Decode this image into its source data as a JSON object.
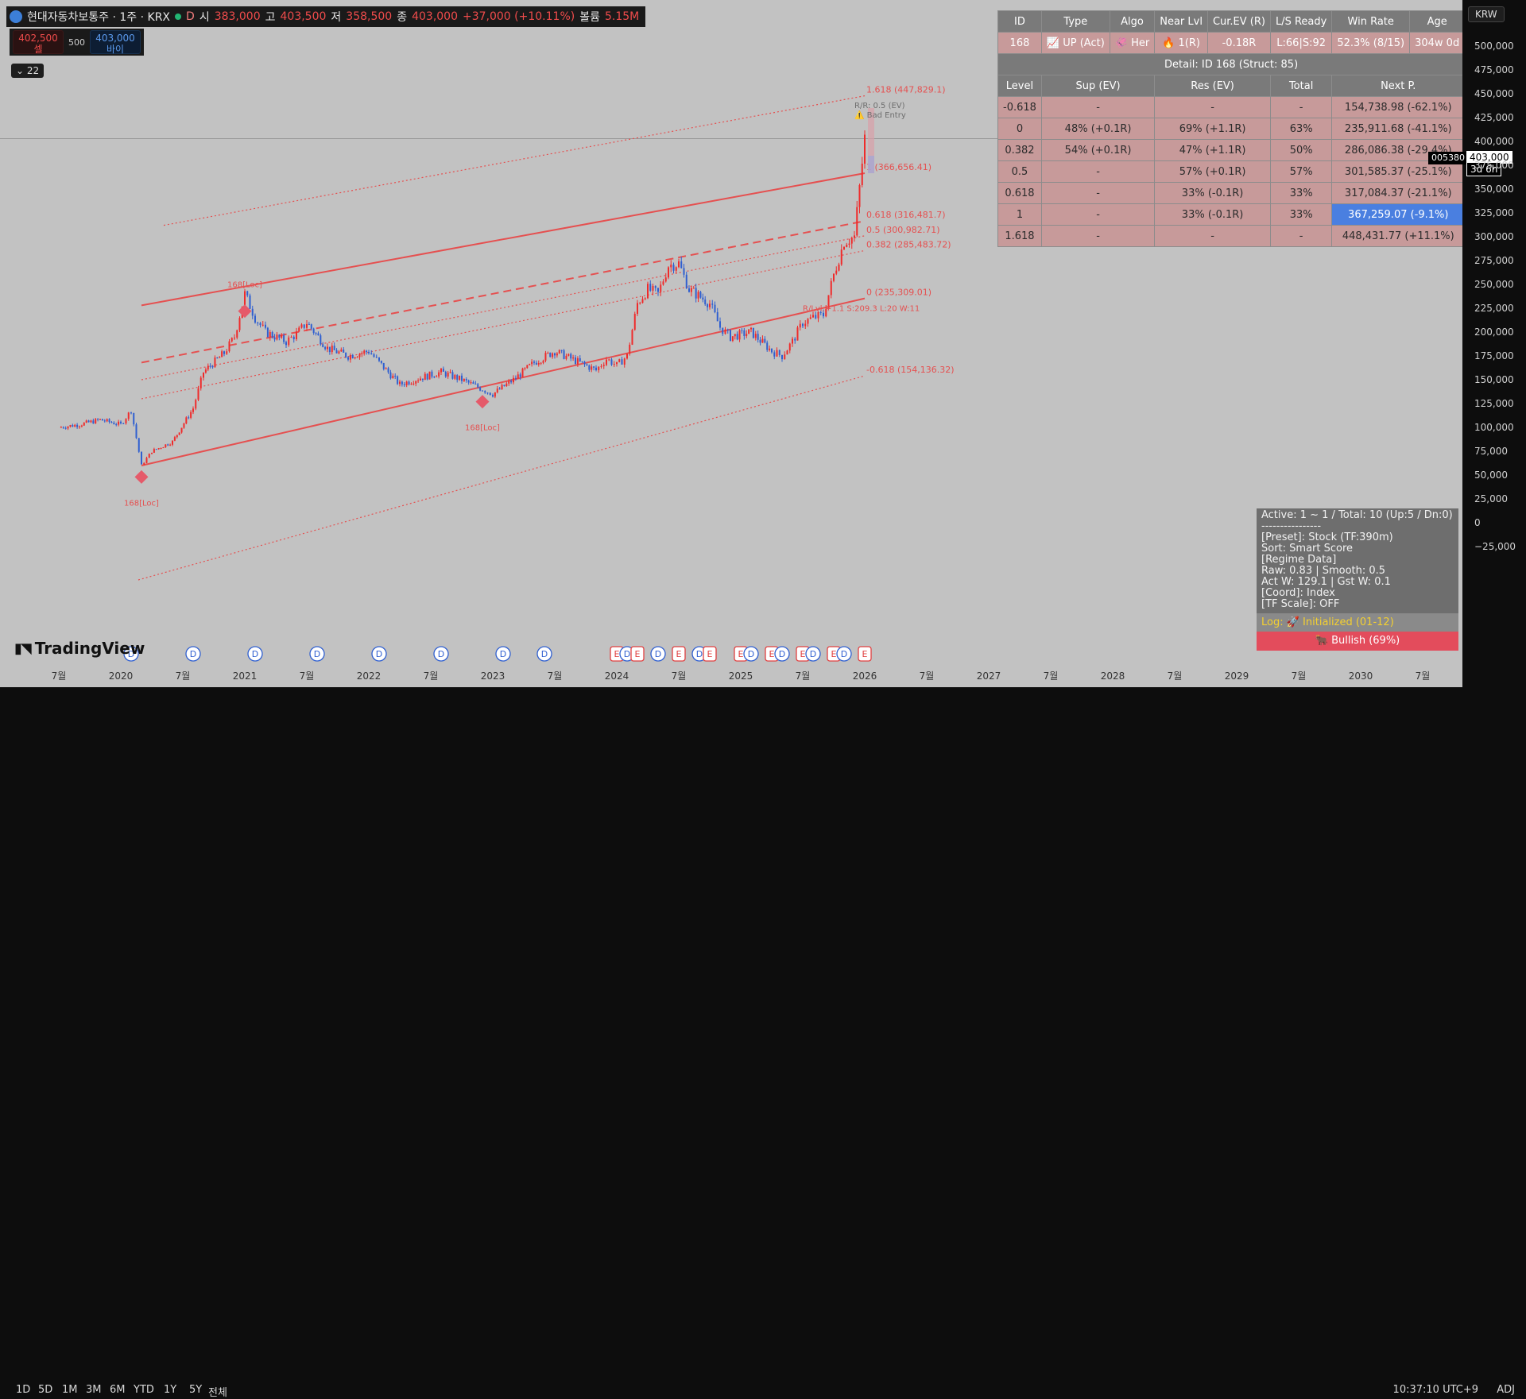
{
  "ticker": {
    "name": "현대자동차보통주 · 1주 · KRX",
    "interval": "D",
    "o_label": "시",
    "o": "383,000",
    "h_label": "고",
    "h": "403,500",
    "l_label": "저",
    "l": "358,500",
    "c_label": "종",
    "c": "403,000",
    "change": "+37,000 (+10.11%)",
    "vol_label": "볼륨",
    "vol": "5.15M"
  },
  "trade": {
    "sell_price": "402,500",
    "sell_label": "셀",
    "qty": "500",
    "buy_price": "403,000",
    "buy_label": "바이"
  },
  "indicator_count": "22",
  "branding": "TradingView",
  "table": {
    "headers": [
      "ID",
      "Type",
      "Algo",
      "Near Lvl",
      "Cur.EV (R)",
      "L/S Ready",
      "Win Rate",
      "Age"
    ],
    "selected": [
      "168",
      "📈 UP (Act)",
      "🦑 Her",
      "🔥 1(R)",
      "-0.18R",
      "L:66|S:92",
      "52.3% (8/15)",
      "304w 0d"
    ],
    "detail_title": "Detail: ID 168 (Struct: 85)",
    "level_headers": [
      "Level",
      "Sup (EV)",
      "Res (EV)",
      "Total",
      "Next P."
    ],
    "levels": [
      [
        "-0.618",
        "-",
        "-",
        "-",
        "154,738.98 (-62.1%)"
      ],
      [
        "0",
        "48% (+0.1R)",
        "69% (+1.1R)",
        "63%",
        "235,911.68 (-41.1%)"
      ],
      [
        "0.382",
        "54% (+0.1R)",
        "47% (+1.1R)",
        "50%",
        "286,086.38 (-29.4%)"
      ],
      [
        "0.5",
        "-",
        "57% (+0.1R)",
        "57%",
        "301,585.37 (-25.1%)"
      ],
      [
        "0.618",
        "-",
        "33% (-0.1R)",
        "33%",
        "317,084.37 (-21.1%)"
      ],
      [
        "1",
        "-",
        "33% (-0.1R)",
        "33%",
        "367,259.07 (-9.1%)"
      ],
      [
        "1.618",
        "-",
        "-",
        "-",
        "448,431.77 (+11.1%)"
      ]
    ]
  },
  "info": {
    "lines": [
      "Active: 1 ~ 1 / Total: 10 (Up:5 / Dn:0)",
      "----------------",
      "[Preset]: Stock (TF:390m)",
      "Sort: Smart Score",
      "[Regime Data]",
      "Raw: 0.83 | Smooth: 0.5",
      "Act W: 129.1 | Gst W: 0.1",
      "[Coord]: Index",
      "[TF Scale]: OFF"
    ],
    "log": "Log: 🚀 Initialized (01-12)",
    "bull": "🐂 Bullish (69%)"
  },
  "price_scale": {
    "currency": "KRW",
    "ticks": [
      "500,000",
      "475,000",
      "450,000",
      "425,000",
      "400,000",
      "375,000",
      "350,000",
      "325,000",
      "300,000",
      "275,000",
      "250,000",
      "225,000",
      "200,000",
      "175,000",
      "150,000",
      "125,000",
      "100,000",
      "75,000",
      "50,000",
      "25,000",
      "0",
      "−25,000"
    ],
    "current_price": "403,000",
    "countdown": "3d 6h",
    "symbol_code": "005380"
  },
  "bottom": {
    "timeframes": [
      "1D",
      "5D",
      "1M",
      "3M",
      "6M",
      "YTD",
      "1Y",
      "5Y",
      "전체"
    ],
    "clock": "10:37:10 UTC+9",
    "adj": "ADJ"
  },
  "chart_data": {
    "type": "candlestick",
    "x_tick_labels": [
      "7월",
      "2020",
      "7월",
      "2021",
      "7월",
      "2022",
      "7월",
      "2023",
      "7월",
      "2024",
      "7월",
      "2025",
      "7월",
      "2026",
      "7월",
      "2027",
      "7월",
      "2028",
      "7월",
      "2029",
      "7월",
      "2030",
      "7월"
    ],
    "ylim": [
      -25000,
      500000
    ],
    "price_path": [
      [
        "2019-07",
        100000
      ],
      [
        "2019-09",
        103000
      ],
      [
        "2019-11",
        108000
      ],
      [
        "2020-01",
        103000
      ],
      [
        "2020-02",
        118000
      ],
      [
        "2020-03",
        60000
      ],
      [
        "2020-04",
        75000
      ],
      [
        "2020-06",
        85000
      ],
      [
        "2020-08",
        120000
      ],
      [
        "2020-09",
        158000
      ],
      [
        "2020-11",
        178000
      ],
      [
        "2020-12",
        195000
      ],
      [
        "2021-01",
        240000
      ],
      [
        "2021-02",
        215000
      ],
      [
        "2021-03",
        200000
      ],
      [
        "2021-05",
        190000
      ],
      [
        "2021-06",
        198000
      ],
      [
        "2021-07",
        210000
      ],
      [
        "2021-09",
        183000
      ],
      [
        "2021-11",
        175000
      ],
      [
        "2022-01",
        180000
      ],
      [
        "2022-02",
        168000
      ],
      [
        "2022-04",
        145000
      ],
      [
        "2022-06",
        152000
      ],
      [
        "2022-08",
        158000
      ],
      [
        "2022-10",
        150000
      ],
      [
        "2022-12",
        140000
      ],
      [
        "2023-01",
        135000
      ],
      [
        "2023-03",
        150000
      ],
      [
        "2023-05",
        168000
      ],
      [
        "2023-07",
        180000
      ],
      [
        "2023-09",
        170000
      ],
      [
        "2023-11",
        160000
      ],
      [
        "2023-12",
        172000
      ],
      [
        "2024-01",
        165000
      ],
      [
        "2024-02",
        175000
      ],
      [
        "2024-03",
        230000
      ],
      [
        "2024-04",
        245000
      ],
      [
        "2024-05",
        240000
      ],
      [
        "2024-06",
        270000
      ],
      [
        "2024-07",
        272000
      ],
      [
        "2024-08",
        245000
      ],
      [
        "2024-10",
        230000
      ],
      [
        "2024-11",
        205000
      ],
      [
        "2024-12",
        195000
      ],
      [
        "2025-02",
        200000
      ],
      [
        "2025-04",
        180000
      ],
      [
        "2025-05",
        175000
      ],
      [
        "2025-06",
        190000
      ],
      [
        "2025-07",
        210000
      ],
      [
        "2025-08",
        215000
      ],
      [
        "2025-09",
        218000
      ],
      [
        "2025-10",
        260000
      ],
      [
        "2025-11",
        295000
      ],
      [
        "2025-12",
        300000
      ],
      [
        "2026-01",
        403000
      ]
    ],
    "channel": {
      "start_date": "2020-03",
      "end_date": "2026-01",
      "levels": [
        {
          "level": "-0.618",
          "label": "-0.618 (154,136.32)",
          "start": -60000,
          "end": 154136.32,
          "style": "dotted"
        },
        {
          "level": "0",
          "label": "0 (235,309.01)",
          "start": 60000,
          "end": 235309.01,
          "style": "solid"
        },
        {
          "level": "0.382",
          "label": "0.382 (285,483.72)",
          "start": 130000,
          "end": 285483.72,
          "style": "dotted"
        },
        {
          "level": "0.5",
          "label": "0.5 (300,982.71)",
          "start": 150000,
          "end": 300982.71,
          "style": "dotted"
        },
        {
          "level": "0.618",
          "label": "0.618 (316,481.7)",
          "start": 168000,
          "end": 316481.7,
          "style": "dashed"
        },
        {
          "level": "1",
          "label": "1 (366,656.41)",
          "start": 228000,
          "end": 366656.41,
          "style": "solid"
        },
        {
          "level": "1.618",
          "label": "1.618 (447,829.1)",
          "start": 312000,
          "end": 447829.1,
          "style": "dotted"
        }
      ]
    },
    "pivots": [
      {
        "date": "2020-03",
        "price": 48000,
        "label": "168[Loc]",
        "label_pos": "below"
      },
      {
        "date": "2021-01",
        "price": 222000,
        "label": "168[Loc]",
        "label_pos": "above"
      },
      {
        "date": "2022-12",
        "price": 127000,
        "label": "168[Loc]",
        "label_pos": "below"
      }
    ],
    "annotations": [
      {
        "text": "R/R: 0.5 (EV)",
        "date": "2025-12",
        "price": 435000
      },
      {
        "text": "⚠️ Bad Entry",
        "date": "2025-12",
        "price": 425000
      },
      {
        "text": "R/Lvl:+1.1 S:209.3 L:20 W:11",
        "date": "2025-09",
        "price": 222000
      }
    ],
    "event_markers": [
      {
        "date": "2020-02",
        "letter": "D"
      },
      {
        "date": "2020-08",
        "letter": "D"
      },
      {
        "date": "2021-02",
        "letter": "D"
      },
      {
        "date": "2021-08",
        "letter": "D"
      },
      {
        "date": "2022-02",
        "letter": "D"
      },
      {
        "date": "2022-08",
        "letter": "D"
      },
      {
        "date": "2023-02",
        "letter": "D"
      },
      {
        "date": "2023-06",
        "letter": "D"
      },
      {
        "date": "2024-01",
        "letter": "E"
      },
      {
        "date": "2024-02",
        "letter": "D"
      },
      {
        "date": "2024-03",
        "letter": "E"
      },
      {
        "date": "2024-05",
        "letter": "D"
      },
      {
        "date": "2024-07",
        "letter": "E"
      },
      {
        "date": "2024-09",
        "letter": "D"
      },
      {
        "date": "2024-10",
        "letter": "E"
      },
      {
        "date": "2025-01",
        "letter": "E"
      },
      {
        "date": "2025-02",
        "letter": "D"
      },
      {
        "date": "2025-04",
        "letter": "E"
      },
      {
        "date": "2025-05",
        "letter": "D"
      },
      {
        "date": "2025-07",
        "letter": "E"
      },
      {
        "date": "2025-08",
        "letter": "D"
      },
      {
        "date": "2025-10",
        "letter": "E"
      },
      {
        "date": "2025-11",
        "letter": "D"
      },
      {
        "date": "2026-01",
        "letter": "E"
      }
    ],
    "colors": {
      "up": "#ef2b2b",
      "down": "#2f5fd0",
      "channel": "#e55050",
      "background": "#c2c2c2"
    }
  }
}
